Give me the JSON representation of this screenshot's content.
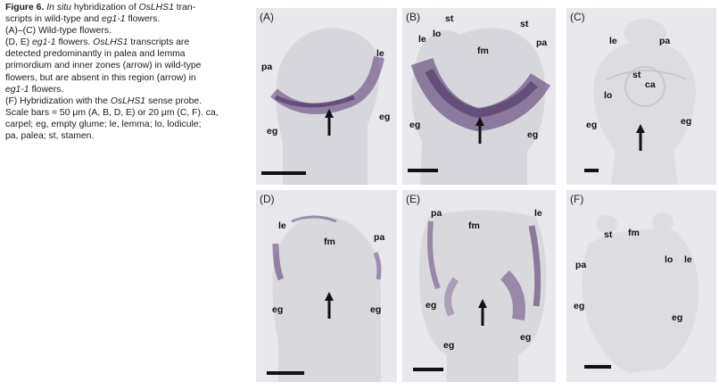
{
  "caption": {
    "title": "Figure 6.",
    "title_italic_a": "In situ",
    "title_rest_a": " hybridization of ",
    "title_gene": "OsLHS1",
    "title_rest_b": " tran-",
    "line2_a": "scripts in wild-type and ",
    "line2_gene": "eg1-1",
    "line2_b": " flowers.",
    "line3": "(A)–(C) Wild-type flowers.",
    "line4_a": "(D, E) ",
    "line4_gene": "eg1-1",
    "line4_b": " flowers. ",
    "line4_gene2": "OsLHS1",
    "line4_c": " transcripts are",
    "line5": "detected predominantly in palea and lemma",
    "line6": "primordium and inner zones (arrow) in wild-type",
    "line7": "flowers, but are absent in this region (arrow) in",
    "line8_gene": "eg1-1",
    "line8_b": " flowers.",
    "line9_a": "(F) Hybridization with the ",
    "line9_gene": "OsLHS1",
    "line9_b": " sense probe.",
    "line10": "Scale bars = 50 μm (A, B, D, E) or 20 μm (C, F). ca,",
    "line11": "carpel; eg, empty glume; le, lemma; lo, lodicule;",
    "line12": "pa, palea; st, stamen."
  },
  "panels": [
    {
      "id": "A",
      "label": "(A)",
      "tissue": [
        "le",
        "pa",
        "eg",
        "eg"
      ]
    },
    {
      "id": "B",
      "label": "(B)",
      "tissue": [
        "st",
        "st",
        "le",
        "lo",
        "fm",
        "pa",
        "eg",
        "eg"
      ]
    },
    {
      "id": "C",
      "label": "(C)",
      "tissue": [
        "le",
        "pa",
        "st",
        "ca",
        "lo",
        "eg",
        "eg"
      ]
    },
    {
      "id": "D",
      "label": "(D)",
      "tissue": [
        "le",
        "fm",
        "pa",
        "eg",
        "eg"
      ]
    },
    {
      "id": "E",
      "label": "(E)",
      "tissue": [
        "pa",
        "le",
        "fm",
        "eg",
        "eg",
        "eg"
      ]
    },
    {
      "id": "F",
      "label": "(F)",
      "tissue": [
        "st",
        "fm",
        "pa",
        "lo",
        "le",
        "eg",
        "eg"
      ]
    }
  ],
  "colors": {
    "panel_bg": "#e7e7ec",
    "tissue": "#d8d8dd",
    "stain": "#5a3a72"
  }
}
